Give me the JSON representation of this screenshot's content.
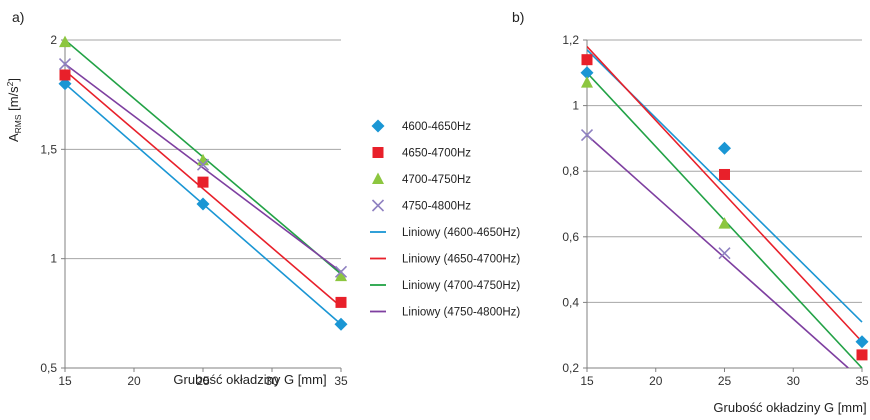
{
  "colors": {
    "4600-4650Hz": "#1a96d4",
    "4650-4700Hz": "#e8202a",
    "4700-4750Hz": "#8cc63f",
    "4750-4800Hz": "#8e80c0",
    "Liniowy (4600-4650Hz)": "#1a96d4",
    "Liniowy (4650-4700Hz)": "#e8202a",
    "Liniowy (4700-4750Hz)": "#22a246",
    "Liniowy (4750-4800Hz)": "#7e3fa0",
    "grid": "#a6a6a6",
    "axis": "#808080"
  },
  "legend": {
    "placement": "center, between panels",
    "entries": [
      {
        "label": "4600-4650Hz",
        "marker": "diamond",
        "color_key": "4600-4650Hz"
      },
      {
        "label": "4650-4700Hz",
        "marker": "square",
        "color_key": "4650-4700Hz"
      },
      {
        "label": "4700-4750Hz",
        "marker": "triangle",
        "color_key": "4700-4750Hz"
      },
      {
        "label": "4750-4800Hz",
        "marker": "x",
        "color_key": "4750-4800Hz"
      },
      {
        "label": "Liniowy (4600-4650Hz)",
        "marker": "line",
        "color_key": "Liniowy (4600-4650Hz)"
      },
      {
        "label": "Liniowy (4650-4700Hz)",
        "marker": "line",
        "color_key": "Liniowy (4650-4700Hz)"
      },
      {
        "label": "Liniowy (4700-4750Hz)",
        "marker": "line",
        "color_key": "Liniowy (4700-4750Hz)"
      },
      {
        "label": "Liniowy (4750-4800Hz)",
        "marker": "line",
        "color_key": "Liniowy (4750-4800Hz)"
      }
    ]
  },
  "chart_data": [
    {
      "type": "scatter",
      "panel_label": "a)",
      "title": "",
      "xlabel": "Grubość okładziny G [mm]",
      "ylabel": {
        "base": "A",
        "sub": "RMS",
        "unit_open": " [m/s",
        "sup": "2",
        "unit_close": "]"
      },
      "xlim": [
        15,
        35
      ],
      "ylim": [
        0.5,
        2
      ],
      "x_ticks": [
        15,
        20,
        25,
        30,
        35
      ],
      "x_tick_labels": [
        "15",
        "20",
        "25",
        "30",
        "35"
      ],
      "y_ticks": [
        0.5,
        1,
        1.5,
        2
      ],
      "y_tick_labels": [
        "0,5",
        "1",
        "1,5",
        "2"
      ],
      "grid": "horizontal",
      "x": [
        15,
        25,
        35
      ],
      "series": [
        {
          "name": "4600-4650Hz",
          "marker": "diamond",
          "values": [
            1.8,
            1.25,
            0.7
          ]
        },
        {
          "name": "4650-4700Hz",
          "marker": "square",
          "values": [
            1.84,
            1.35,
            0.8
          ]
        },
        {
          "name": "4700-4750Hz",
          "marker": "triangle",
          "values": [
            1.99,
            1.45,
            0.92
          ]
        },
        {
          "name": "4750-4800Hz",
          "marker": "x",
          "values": [
            1.89,
            1.43,
            0.94
          ]
        }
      ],
      "trendlines": [
        {
          "name": "Liniowy (4600-4650Hz)",
          "x": [
            15,
            35
          ],
          "y": [
            1.8,
            0.7
          ]
        },
        {
          "name": "Liniowy (4650-4700Hz)",
          "x": [
            15,
            35
          ],
          "y": [
            1.86,
            0.78
          ]
        },
        {
          "name": "Liniowy (4700-4750Hz)",
          "x": [
            15,
            35
          ],
          "y": [
            2.0,
            0.93
          ]
        },
        {
          "name": "Liniowy (4750-4800Hz)",
          "x": [
            15,
            35
          ],
          "y": [
            1.89,
            0.94
          ]
        }
      ]
    },
    {
      "type": "scatter",
      "panel_label": "b)",
      "title": "",
      "xlabel": "Grubość okładziny G [mm]",
      "ylabel": "",
      "xlim": [
        15,
        35
      ],
      "ylim": [
        0.2,
        1.2
      ],
      "x_ticks": [
        15,
        20,
        25,
        30,
        35
      ],
      "x_tick_labels": [
        "15",
        "20",
        "25",
        "30",
        "35"
      ],
      "y_ticks": [
        0.2,
        0.4,
        0.6,
        0.8,
        1.0,
        1.2
      ],
      "y_tick_labels": [
        "0,2",
        "0,4",
        "0,6",
        "0,8",
        "1",
        "1,2"
      ],
      "grid": "horizontal",
      "x": [
        15,
        25,
        35
      ],
      "series": [
        {
          "name": "4600-4650Hz",
          "marker": "diamond",
          "values": [
            1.1,
            0.87,
            0.28
          ]
        },
        {
          "name": "4650-4700Hz",
          "marker": "square",
          "values": [
            1.14,
            0.79,
            0.24
          ]
        },
        {
          "name": "4700-4750Hz",
          "marker": "triangle",
          "values": [
            1.07,
            0.64,
            null
          ]
        },
        {
          "name": "4750-4800Hz",
          "marker": "x",
          "values": [
            0.91,
            0.55,
            null
          ]
        }
      ],
      "trendlines": [
        {
          "name": "Liniowy (4600-4650Hz)",
          "x": [
            15,
            35
          ],
          "y": [
            1.17,
            0.34
          ]
        },
        {
          "name": "Liniowy (4650-4700Hz)",
          "x": [
            15,
            35
          ],
          "y": [
            1.18,
            0.28
          ]
        },
        {
          "name": "Liniowy (4700-4750Hz)",
          "x": [
            15,
            35
          ],
          "y": [
            1.1,
            0.2
          ]
        },
        {
          "name": "Liniowy (4750-4800Hz)",
          "x": [
            15,
            34
          ],
          "y": [
            0.91,
            0.2
          ]
        }
      ]
    }
  ]
}
